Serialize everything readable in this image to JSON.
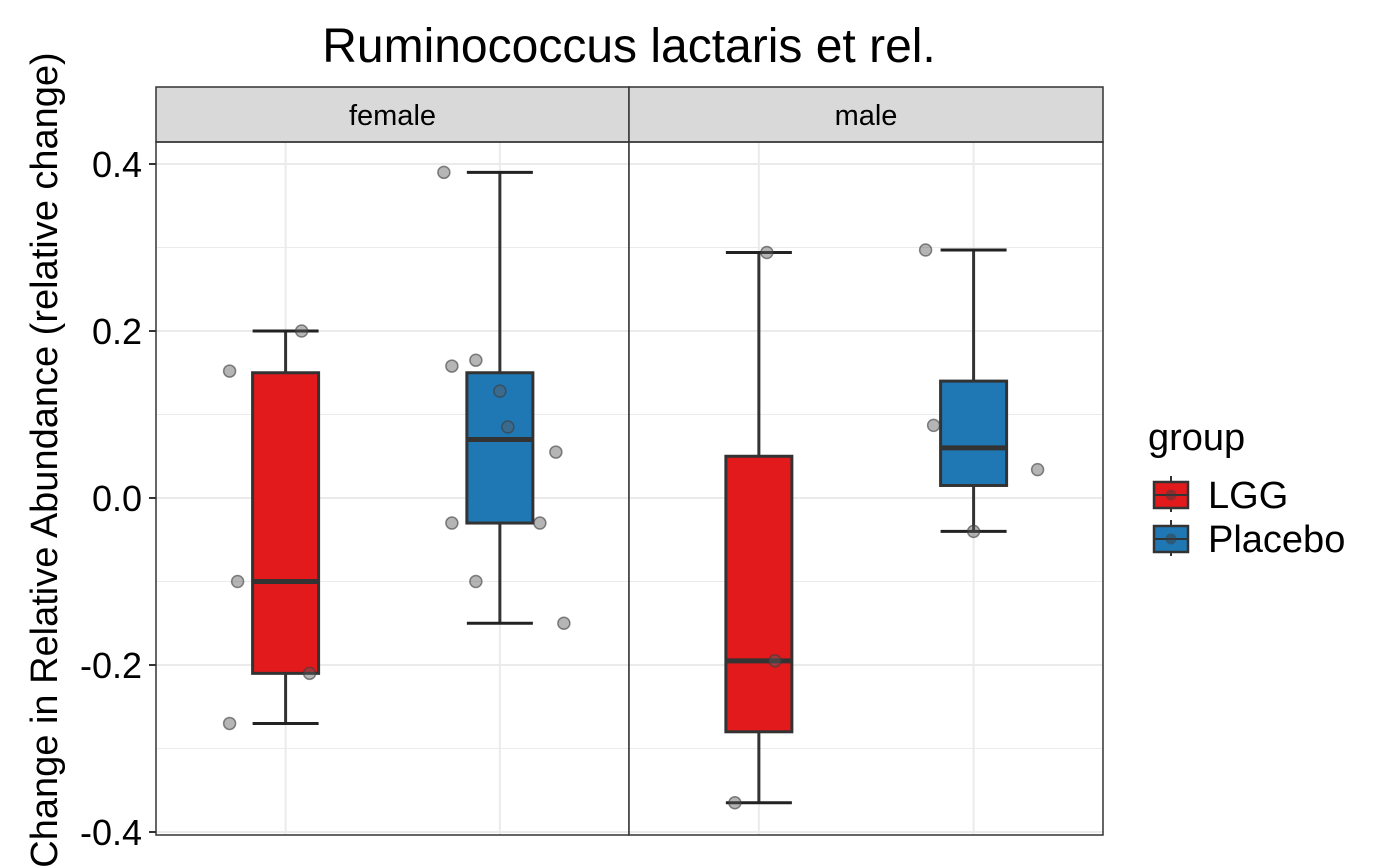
{
  "chart_data": {
    "type": "boxplot",
    "title": "Ruminococcus lactaris et rel.",
    "ylabel": "Change in Relative Abundance (relative change)",
    "xlabel": "",
    "ylim": [
      -0.4,
      0.4
    ],
    "yticks": [
      "-0.4",
      "-0.2",
      "0.0",
      "0.2",
      "0.4"
    ],
    "yticks_values": [
      -0.4,
      -0.2,
      0.0,
      0.2,
      0.4
    ],
    "grid": true,
    "legend": {
      "title": "group",
      "placement": "right",
      "entries": [
        {
          "label": "LGG",
          "color": "#e31a1c"
        },
        {
          "label": "Placebo",
          "color": "#1f78b4"
        }
      ]
    },
    "groups": [
      "LGG",
      "Placebo"
    ],
    "panels": [
      {
        "label": "female",
        "boxes": [
          {
            "group": "LGG",
            "color": "#e31a1c",
            "whisker_low": -0.27,
            "q1": -0.21,
            "median": -0.1,
            "q3": 0.15,
            "whisker_high": 0.2,
            "points": [
              [
                -0.07,
                0.152
              ],
              [
                -0.06,
                -0.1
              ],
              [
                -0.07,
                -0.27
              ],
              [
                0.02,
                0.2
              ],
              [
                0.03,
                -0.21
              ]
            ]
          },
          {
            "group": "Placebo",
            "color": "#1f78b4",
            "whisker_low": -0.15,
            "q1": -0.03,
            "median": 0.07,
            "q3": 0.15,
            "whisker_high": 0.39,
            "points": [
              [
                -0.07,
                0.39
              ],
              [
                -0.06,
                0.158
              ],
              [
                -0.06,
                -0.03
              ],
              [
                -0.03,
                0.165
              ],
              [
                0.0,
                0.128
              ],
              [
                0.01,
                0.085
              ],
              [
                -0.03,
                -0.1
              ],
              [
                0.05,
                -0.03
              ],
              [
                0.07,
                0.055
              ],
              [
                0.08,
                -0.15
              ]
            ]
          }
        ]
      },
      {
        "label": "male",
        "boxes": [
          {
            "group": "LGG",
            "color": "#e31a1c",
            "whisker_low": -0.365,
            "q1": -0.28,
            "median": -0.195,
            "q3": 0.05,
            "whisker_high": 0.294,
            "points": [
              [
                0.01,
                0.294
              ],
              [
                0.02,
                -0.195
              ],
              [
                -0.03,
                -0.365
              ]
            ]
          },
          {
            "group": "Placebo",
            "color": "#1f78b4",
            "whisker_low": -0.04,
            "q1": 0.015,
            "median": 0.06,
            "q3": 0.14,
            "whisker_high": 0.297,
            "points": [
              [
                -0.06,
                0.297
              ],
              [
                -0.05,
                0.087
              ],
              [
                0.0,
                -0.04
              ],
              [
                0.08,
                0.034
              ]
            ]
          }
        ]
      }
    ]
  }
}
